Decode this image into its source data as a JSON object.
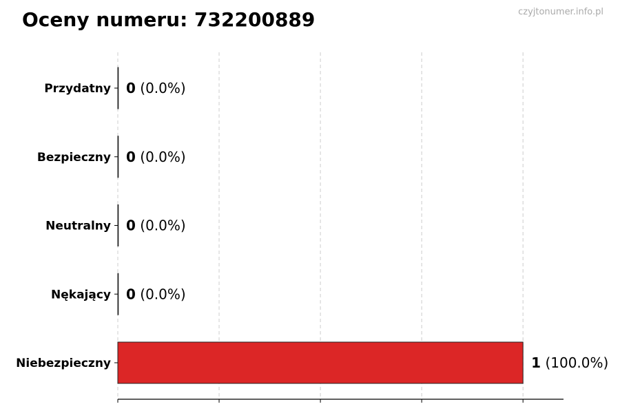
{
  "title": "Oceny numeru: 732200889",
  "watermark": "czyjtonumer.info.pl",
  "chart_data": {
    "type": "bar",
    "orientation": "horizontal",
    "title": "Oceny numeru: 732200889",
    "categories": [
      "Przydatny",
      "Bezpieczny",
      "Neutralny",
      "Nękający",
      "Niebezpieczny"
    ],
    "values": [
      0,
      0,
      0,
      0,
      1
    ],
    "labels": [
      {
        "count": "0",
        "pct": "(0.0%)"
      },
      {
        "count": "0",
        "pct": "(0.0%)"
      },
      {
        "count": "0",
        "pct": "(0.0%)"
      },
      {
        "count": "0",
        "pct": "(0.0%)"
      },
      {
        "count": "1",
        "pct": "(100.0%)"
      }
    ],
    "colors": [
      "#dc2626",
      "#dc2626",
      "#dc2626",
      "#dc2626",
      "#dc2626"
    ],
    "xlim": [
      0,
      1.1
    ],
    "xticks": [
      0,
      0.25,
      0.5,
      0.75,
      1.0
    ],
    "xtick_labels_shown": false,
    "grid": "x-dashed",
    "xlabel": "",
    "ylabel": ""
  }
}
